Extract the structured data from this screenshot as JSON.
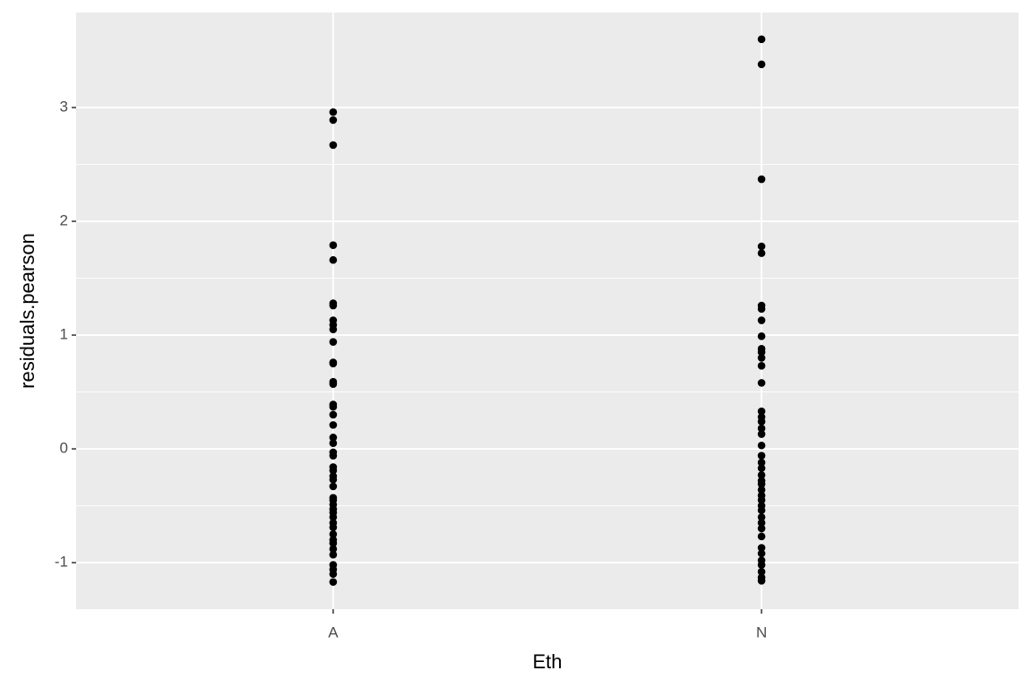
{
  "chart_data": {
    "type": "scatter",
    "xlabel": "Eth",
    "ylabel": "residuals.pearson",
    "categories": [
      "A",
      "N"
    ],
    "values": [
      [
        2.96,
        2.89,
        2.67,
        1.79,
        1.66,
        1.28,
        1.26,
        1.13,
        1.09,
        1.05,
        0.94,
        0.76,
        0.75,
        0.59,
        0.57,
        0.39,
        0.37,
        0.3,
        0.21,
        0.1,
        0.05,
        -0.03,
        -0.06,
        -0.16,
        -0.19,
        -0.24,
        -0.27,
        -0.33,
        -0.43,
        -0.45,
        -0.49,
        -0.53,
        -0.56,
        -0.6,
        -0.65,
        -0.69,
        -0.75,
        -0.8,
        -0.83,
        -0.88,
        -0.93,
        -1.02,
        -1.06,
        -1.1,
        -1.17
      ],
      [
        3.6,
        3.38,
        2.37,
        1.78,
        1.72,
        1.26,
        1.23,
        1.13,
        0.99,
        0.88,
        0.85,
        0.8,
        0.73,
        0.58,
        0.33,
        0.28,
        0.24,
        0.18,
        0.13,
        0.03,
        -0.06,
        -0.12,
        -0.17,
        -0.23,
        -0.28,
        -0.31,
        -0.36,
        -0.41,
        -0.45,
        -0.5,
        -0.54,
        -0.6,
        -0.65,
        -0.7,
        -0.77,
        -0.87,
        -0.92,
        -0.98,
        -1.02,
        -1.08,
        -1.13,
        -1.16
      ]
    ],
    "color": "#000000",
    "ylim": [
      -1.409,
      3.835
    ],
    "yticks": [
      -1,
      0,
      1,
      2,
      3
    ],
    "grid": true
  }
}
